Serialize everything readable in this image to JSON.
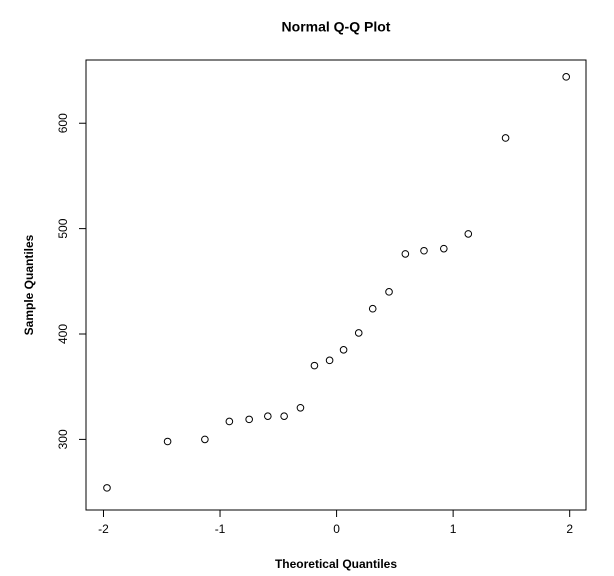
{
  "chart_data": {
    "type": "scatter",
    "title": "Normal Q-Q Plot",
    "x_label": "Theoretical Quantiles",
    "y_label": "Sample Quantiles",
    "x": [
      -1.97,
      -1.45,
      -1.13,
      -0.92,
      -0.75,
      -0.59,
      -0.45,
      -0.31,
      -0.19,
      -0.06,
      0.06,
      0.19,
      0.31,
      0.45,
      0.59,
      0.75,
      0.92,
      1.13,
      1.45,
      1.97
    ],
    "y": [
      254,
      298,
      300,
      317,
      319,
      322,
      322,
      330,
      370,
      375,
      385,
      401,
      424,
      440,
      476,
      479,
      481,
      495,
      586,
      644
    ],
    "color": "#000000",
    "xlim": [
      -2.15,
      2.14
    ],
    "ylim": [
      233,
      660
    ],
    "xticks": [
      -2,
      -1,
      0,
      1,
      2
    ],
    "yticks": [
      300,
      400,
      500,
      600
    ]
  }
}
